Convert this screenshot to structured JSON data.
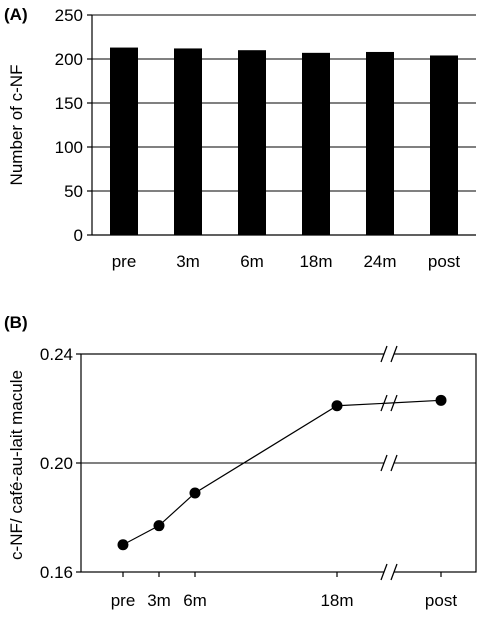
{
  "chart_data": [
    {
      "panel": "(A)",
      "type": "bar",
      "categories": [
        "pre",
        "3m",
        "6m",
        "18m",
        "24m",
        "post"
      ],
      "values": [
        213,
        212,
        210,
        207,
        208,
        204
      ],
      "ylabel": "Number of c-NF",
      "ylim": [
        0,
        250
      ],
      "yticks": [
        0,
        50,
        100,
        150,
        200,
        250
      ],
      "grid": true,
      "bar_color": "#000000"
    },
    {
      "panel": "(B)",
      "type": "line",
      "x_labels": [
        "pre",
        "3m",
        "6m",
        "",
        "18m",
        "post"
      ],
      "x": [
        "pre",
        "3m",
        "6m",
        "18m",
        "post"
      ],
      "values": [
        0.17,
        0.177,
        0.189,
        0.221,
        0.223
      ],
      "ylabel": "c-NF/ café-au-lait macule",
      "ylim": [
        0.16,
        0.24
      ],
      "yticks": [
        "0.16",
        "0.20",
        "0.24"
      ],
      "grid": true,
      "axis_break": true,
      "marker": "circle",
      "line_color": "#000000"
    }
  ]
}
